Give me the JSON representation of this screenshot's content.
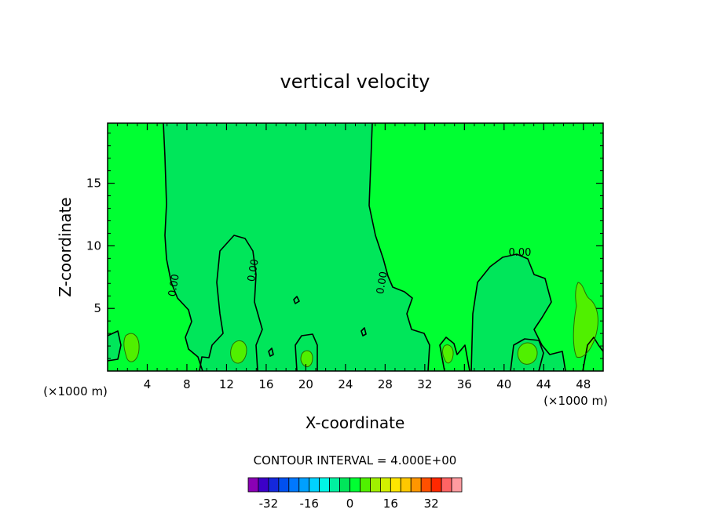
{
  "chart_data": {
    "type": "contour",
    "title": "vertical velocity",
    "xlabel": "X-coordinate",
    "ylabel": "Z-coordinate",
    "x_unit_label": "(×1000 m)",
    "xlim": [
      0,
      50
    ],
    "ylim": [
      0,
      19.8
    ],
    "x_ticks": [
      4,
      8,
      12,
      16,
      20,
      24,
      28,
      32,
      36,
      40,
      44,
      48
    ],
    "y_ticks": [
      5,
      10,
      15
    ],
    "contour_interval_label": "CONTOUR INTERVAL = 4.000E+00",
    "contour_labels": [
      {
        "text": "0.00",
        "x": 7.0,
        "z": 6.8
      },
      {
        "text": "0.00",
        "x": 15.0,
        "z": 8.0
      },
      {
        "text": "0.00",
        "x": 28.0,
        "z": 7.0
      },
      {
        "text": "0.00",
        "x": 41.6,
        "z": 9.2
      }
    ],
    "colorbar": {
      "levels": [
        -36,
        -32,
        -28,
        -24,
        -20,
        -16,
        -12,
        -8,
        -4,
        0,
        4,
        8,
        12,
        16,
        20,
        24,
        28,
        32,
        36
      ],
      "tick_labels": [
        "-32",
        "-16",
        "0",
        "16",
        "32"
      ],
      "tick_values": [
        -32,
        -16,
        0,
        16,
        32
      ],
      "colors": [
        "#8a00b5",
        "#3c00c8",
        "#1428dc",
        "#0050f0",
        "#0078ff",
        "#00a0ff",
        "#00d2ff",
        "#00f5e6",
        "#00f0a0",
        "#00e65a",
        "#00ff32",
        "#50f000",
        "#a0f000",
        "#d2f000",
        "#ffe600",
        "#ffc800",
        "#ff9600",
        "#ff5000",
        "#ff2800",
        "#ff6464",
        "#ff9ba0"
      ]
    },
    "colors": {
      "background_field": "#00ff32",
      "negative_region": "#00e65a",
      "positive_region": "#50f000"
    }
  }
}
